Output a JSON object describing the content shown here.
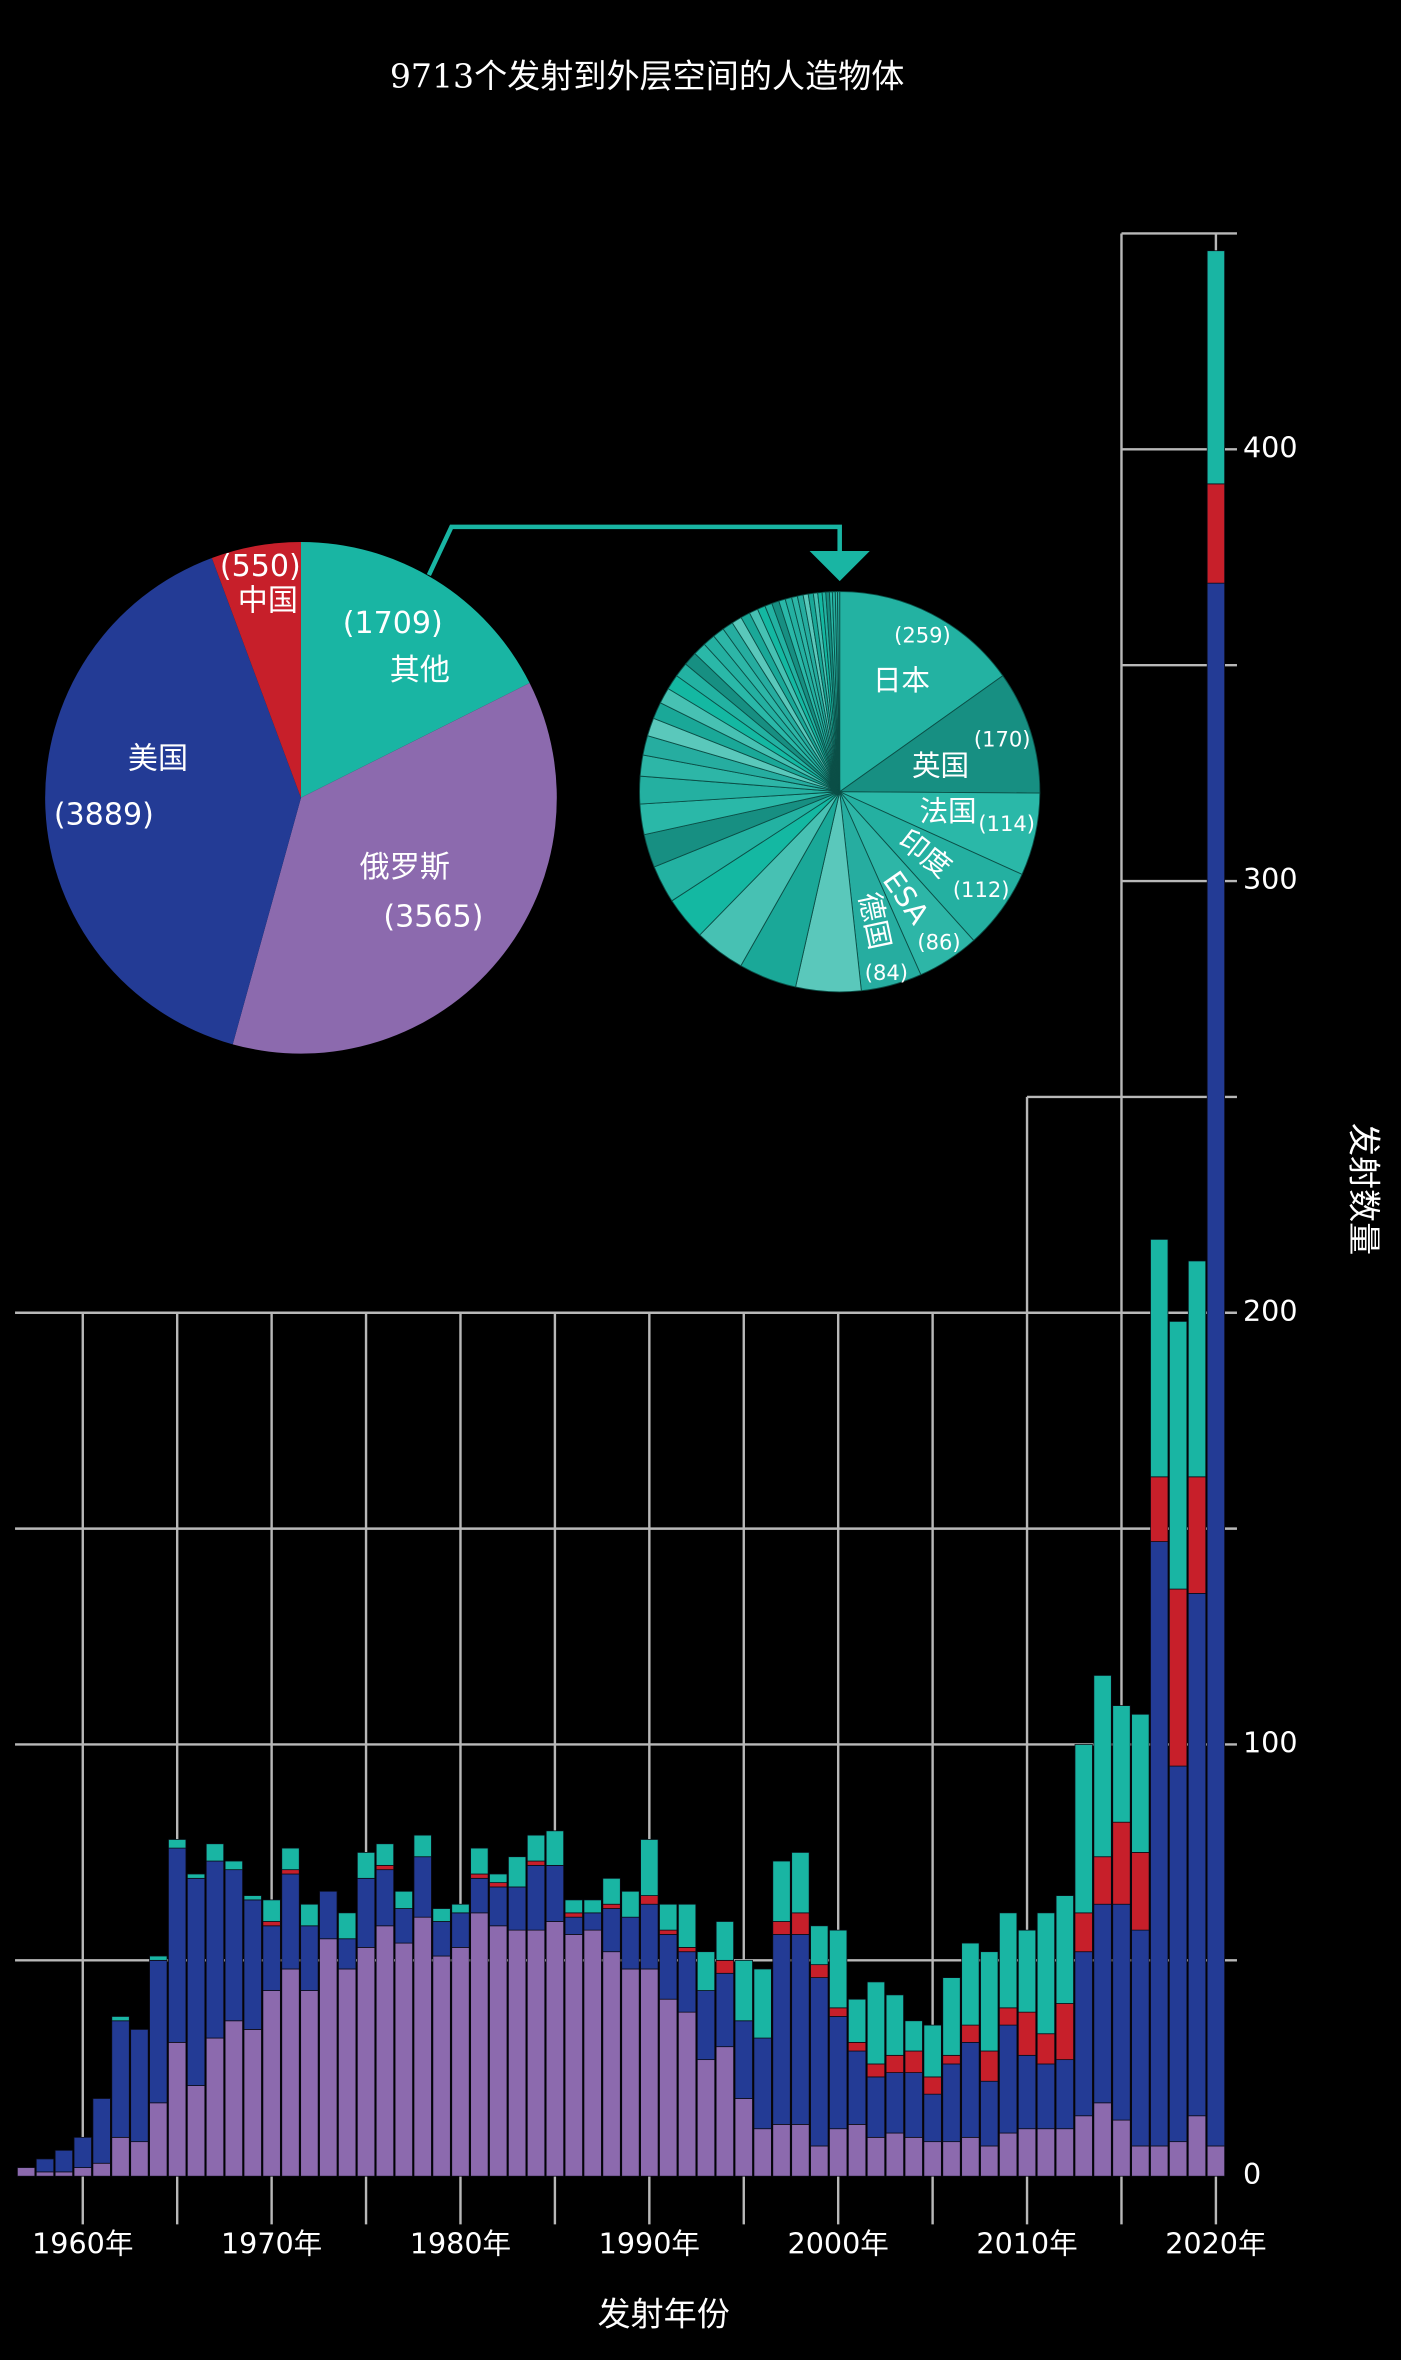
{
  "chart_data": [
    {
      "type": "pie",
      "title": "9713个发射到外层空间的人造物体",
      "categories": [
        "其他",
        "俄罗斯",
        "美国",
        "中国"
      ],
      "values": [
        1709,
        3565,
        3889,
        550
      ],
      "value_labels": [
        "(1709)",
        "(3565)",
        "(3889)",
        "(550)"
      ],
      "colors": [
        "#19b5a3",
        "#8c6aae",
        "#233b95",
        "#c71f2a"
      ]
    },
    {
      "type": "pie",
      "categories": [
        "日本",
        "英国",
        "法国",
        "印度",
        "ESA",
        "德国",
        null,
        null,
        null,
        null,
        null,
        null,
        null,
        null,
        null,
        null,
        null,
        null,
        null,
        null,
        null,
        null,
        null,
        null,
        null,
        null,
        null,
        null,
        null,
        null,
        null,
        null,
        null,
        null,
        null,
        null,
        null,
        null,
        null,
        null,
        null,
        null,
        null,
        null,
        null,
        null
      ],
      "values": [
        259,
        170,
        114,
        112,
        86,
        84,
        90,
        80,
        70,
        60,
        52,
        46,
        42,
        38,
        29,
        27,
        25,
        23,
        22,
        21,
        20,
        19,
        18,
        17,
        16,
        15,
        14,
        13,
        12,
        11,
        10,
        10,
        9,
        9,
        8,
        8,
        7,
        7,
        6,
        6,
        5,
        5,
        4,
        4,
        3,
        3
      ],
      "value_labels": [
        "(259)",
        "(170)",
        "(114)",
        "(112)",
        "(86)",
        "(84)",
        null,
        null,
        null,
        null,
        null,
        null,
        null,
        null,
        null,
        null,
        null,
        null,
        null,
        null,
        null,
        null,
        null,
        null,
        null,
        null,
        null,
        null,
        null,
        null,
        null,
        null,
        null,
        null,
        null,
        null,
        null,
        null,
        null,
        null,
        null,
        null,
        null,
        null,
        null,
        null
      ],
      "colors": [
        "#23b2a2",
        "#178f82",
        "#2ab8a8",
        "#24b0a1",
        "#2db6a7",
        "#26ada0",
        "#5ac8bb",
        "#1aa898",
        "#47c1b3",
        "#14b8a2"
      ]
    },
    {
      "type": "bar",
      "stacked": true,
      "x_label": "发射年份",
      "y_label": "发射数量",
      "categories": [
        1957,
        1958,
        1959,
        1960,
        1961,
        1962,
        1963,
        1964,
        1965,
        1966,
        1967,
        1968,
        1969,
        1970,
        1971,
        1972,
        1973,
        1974,
        1975,
        1976,
        1977,
        1978,
        1979,
        1980,
        1981,
        1982,
        1983,
        1984,
        1985,
        1986,
        1987,
        1988,
        1989,
        1990,
        1991,
        1992,
        1993,
        1994,
        1995,
        1996,
        1997,
        1998,
        1999,
        2000,
        2001,
        2002,
        2003,
        2004,
        2005,
        2006,
        2007,
        2008,
        2009,
        2010,
        2011,
        2012,
        2013,
        2014,
        2015,
        2016,
        2017,
        2018,
        2019,
        2020
      ],
      "series": [
        {
          "color": "#8c6aae",
          "values": [
            2,
            1,
            1,
            2,
            3,
            9,
            8,
            17,
            31,
            21,
            32,
            36,
            34,
            43,
            48,
            43,
            55,
            48,
            53,
            58,
            54,
            60,
            51,
            53,
            61,
            58,
            57,
            57,
            59,
            56,
            57,
            52,
            48,
            48,
            41,
            38,
            27,
            30,
            18,
            11,
            12,
            12,
            7,
            11,
            12,
            9,
            10,
            9,
            8,
            8,
            9,
            7,
            10,
            11,
            11,
            11,
            14,
            17,
            13,
            7,
            7,
            8,
            14,
            7
          ]
        },
        {
          "color": "#233b95",
          "values": [
            0,
            3,
            5,
            7,
            15,
            27,
            26,
            33,
            45,
            48,
            41,
            35,
            30,
            15,
            22,
            15,
            11,
            7,
            16,
            13,
            8,
            14,
            8,
            8,
            8,
            9,
            10,
            15,
            13,
            4,
            4,
            10,
            12,
            15,
            15,
            14,
            16,
            17,
            18,
            21,
            44,
            44,
            39,
            26,
            17,
            14,
            14,
            15,
            11,
            18,
            22,
            15,
            25,
            17,
            15,
            16,
            38,
            46,
            50,
            50,
            140,
            87,
            121,
            362
          ]
        },
        {
          "color": "#c71f2a",
          "values": [
            0,
            0,
            0,
            0,
            0,
            0,
            0,
            0,
            0,
            0,
            0,
            0,
            0,
            1,
            1,
            0,
            0,
            0,
            0,
            1,
            0,
            0,
            0,
            0,
            1,
            1,
            0,
            1,
            0,
            1,
            0,
            1,
            0,
            2,
            1,
            1,
            0,
            3,
            0,
            0,
            3,
            5,
            3,
            2,
            2,
            3,
            4,
            5,
            4,
            2,
            4,
            7,
            4,
            10,
            7,
            13,
            9,
            11,
            19,
            18,
            15,
            41,
            27,
            23
          ]
        },
        {
          "color": "#19b5a3",
          "values": [
            0,
            0,
            0,
            0,
            0,
            1,
            0,
            1,
            2,
            1,
            4,
            2,
            1,
            5,
            5,
            5,
            0,
            6,
            6,
            5,
            4,
            5,
            3,
            2,
            6,
            2,
            7,
            6,
            8,
            3,
            3,
            6,
            6,
            13,
            6,
            10,
            9,
            9,
            14,
            16,
            14,
            14,
            9,
            18,
            10,
            19,
            14,
            7,
            12,
            18,
            19,
            23,
            22,
            19,
            28,
            25,
            39,
            42,
            27,
            32,
            55,
            62,
            50,
            54
          ]
        }
      ],
      "ylim": [
        0,
        450
      ],
      "yticks": [
        0,
        100,
        200,
        300,
        400
      ],
      "yminor_ticks": [
        50,
        150,
        250,
        350,
        450
      ],
      "xticks": [
        {
          "value": 1960,
          "label": "1960年"
        },
        {
          "value": 1970,
          "label": "1970年"
        },
        {
          "value": 1980,
          "label": "1980年"
        },
        {
          "value": 1990,
          "label": "1990年"
        },
        {
          "value": 2000,
          "label": "2000年"
        },
        {
          "value": 2010,
          "label": "2010年"
        },
        {
          "value": 2020,
          "label": "2020年"
        }
      ],
      "xminor_ticks": [
        1965,
        1975,
        1985,
        1995,
        2005,
        2015
      ],
      "grid": true
    }
  ]
}
